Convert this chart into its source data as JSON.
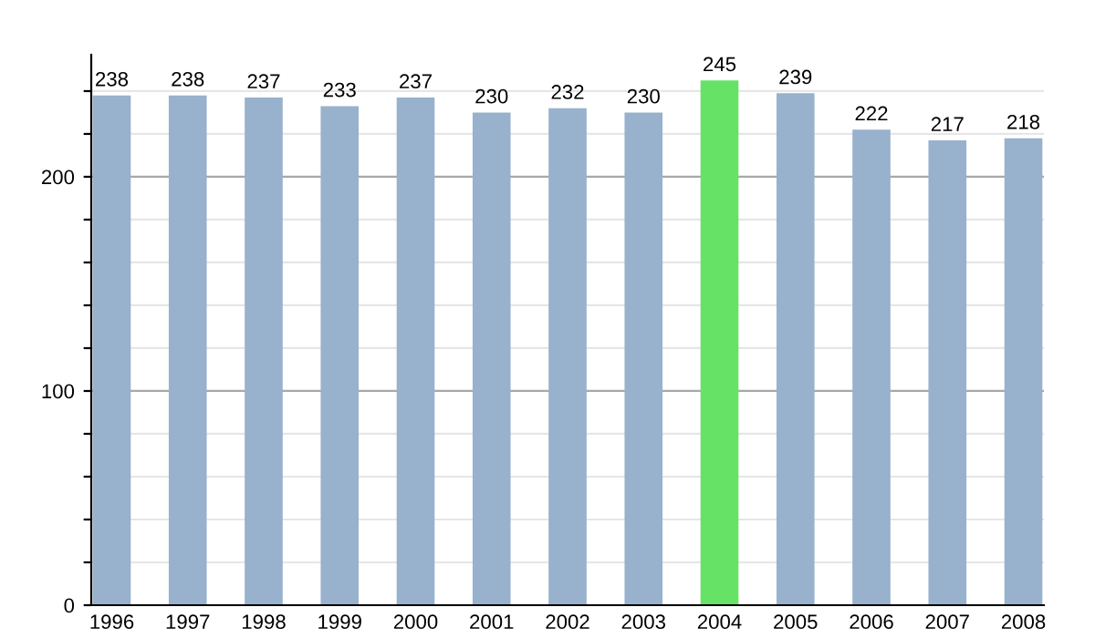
{
  "chart_data": {
    "type": "bar",
    "categories": [
      "1996",
      "1997",
      "1998",
      "1999",
      "2000",
      "2001",
      "2002",
      "2003",
      "2004",
      "2005",
      "2006",
      "2007",
      "2008"
    ],
    "values": [
      238,
      238,
      237,
      233,
      237,
      230,
      232,
      230,
      245,
      239,
      222,
      217,
      218
    ],
    "colors": [
      "#98b1cc",
      "#98b1cc",
      "#98b1cc",
      "#98b1cc",
      "#98b1cc",
      "#98b1cc",
      "#98b1cc",
      "#98b1cc",
      "#66e266",
      "#98b1cc",
      "#98b1cc",
      "#98b1cc",
      "#98b1cc"
    ],
    "data_labels": true,
    "ylim": [
      0,
      257
    ],
    "yticks": [
      0,
      {
        "value": 20,
        "label": null
      },
      {
        "value": 40,
        "label": null
      },
      {
        "value": 60,
        "label": null
      },
      {
        "value": 80,
        "label": null
      },
      100,
      {
        "value": 120,
        "label": null
      },
      {
        "value": 140,
        "label": null
      },
      {
        "value": 160,
        "label": null
      },
      {
        "value": 180,
        "label": null
      },
      200,
      {
        "value": 220,
        "label": null
      },
      {
        "value": 240,
        "label": null
      }
    ],
    "grid": "y"
  }
}
